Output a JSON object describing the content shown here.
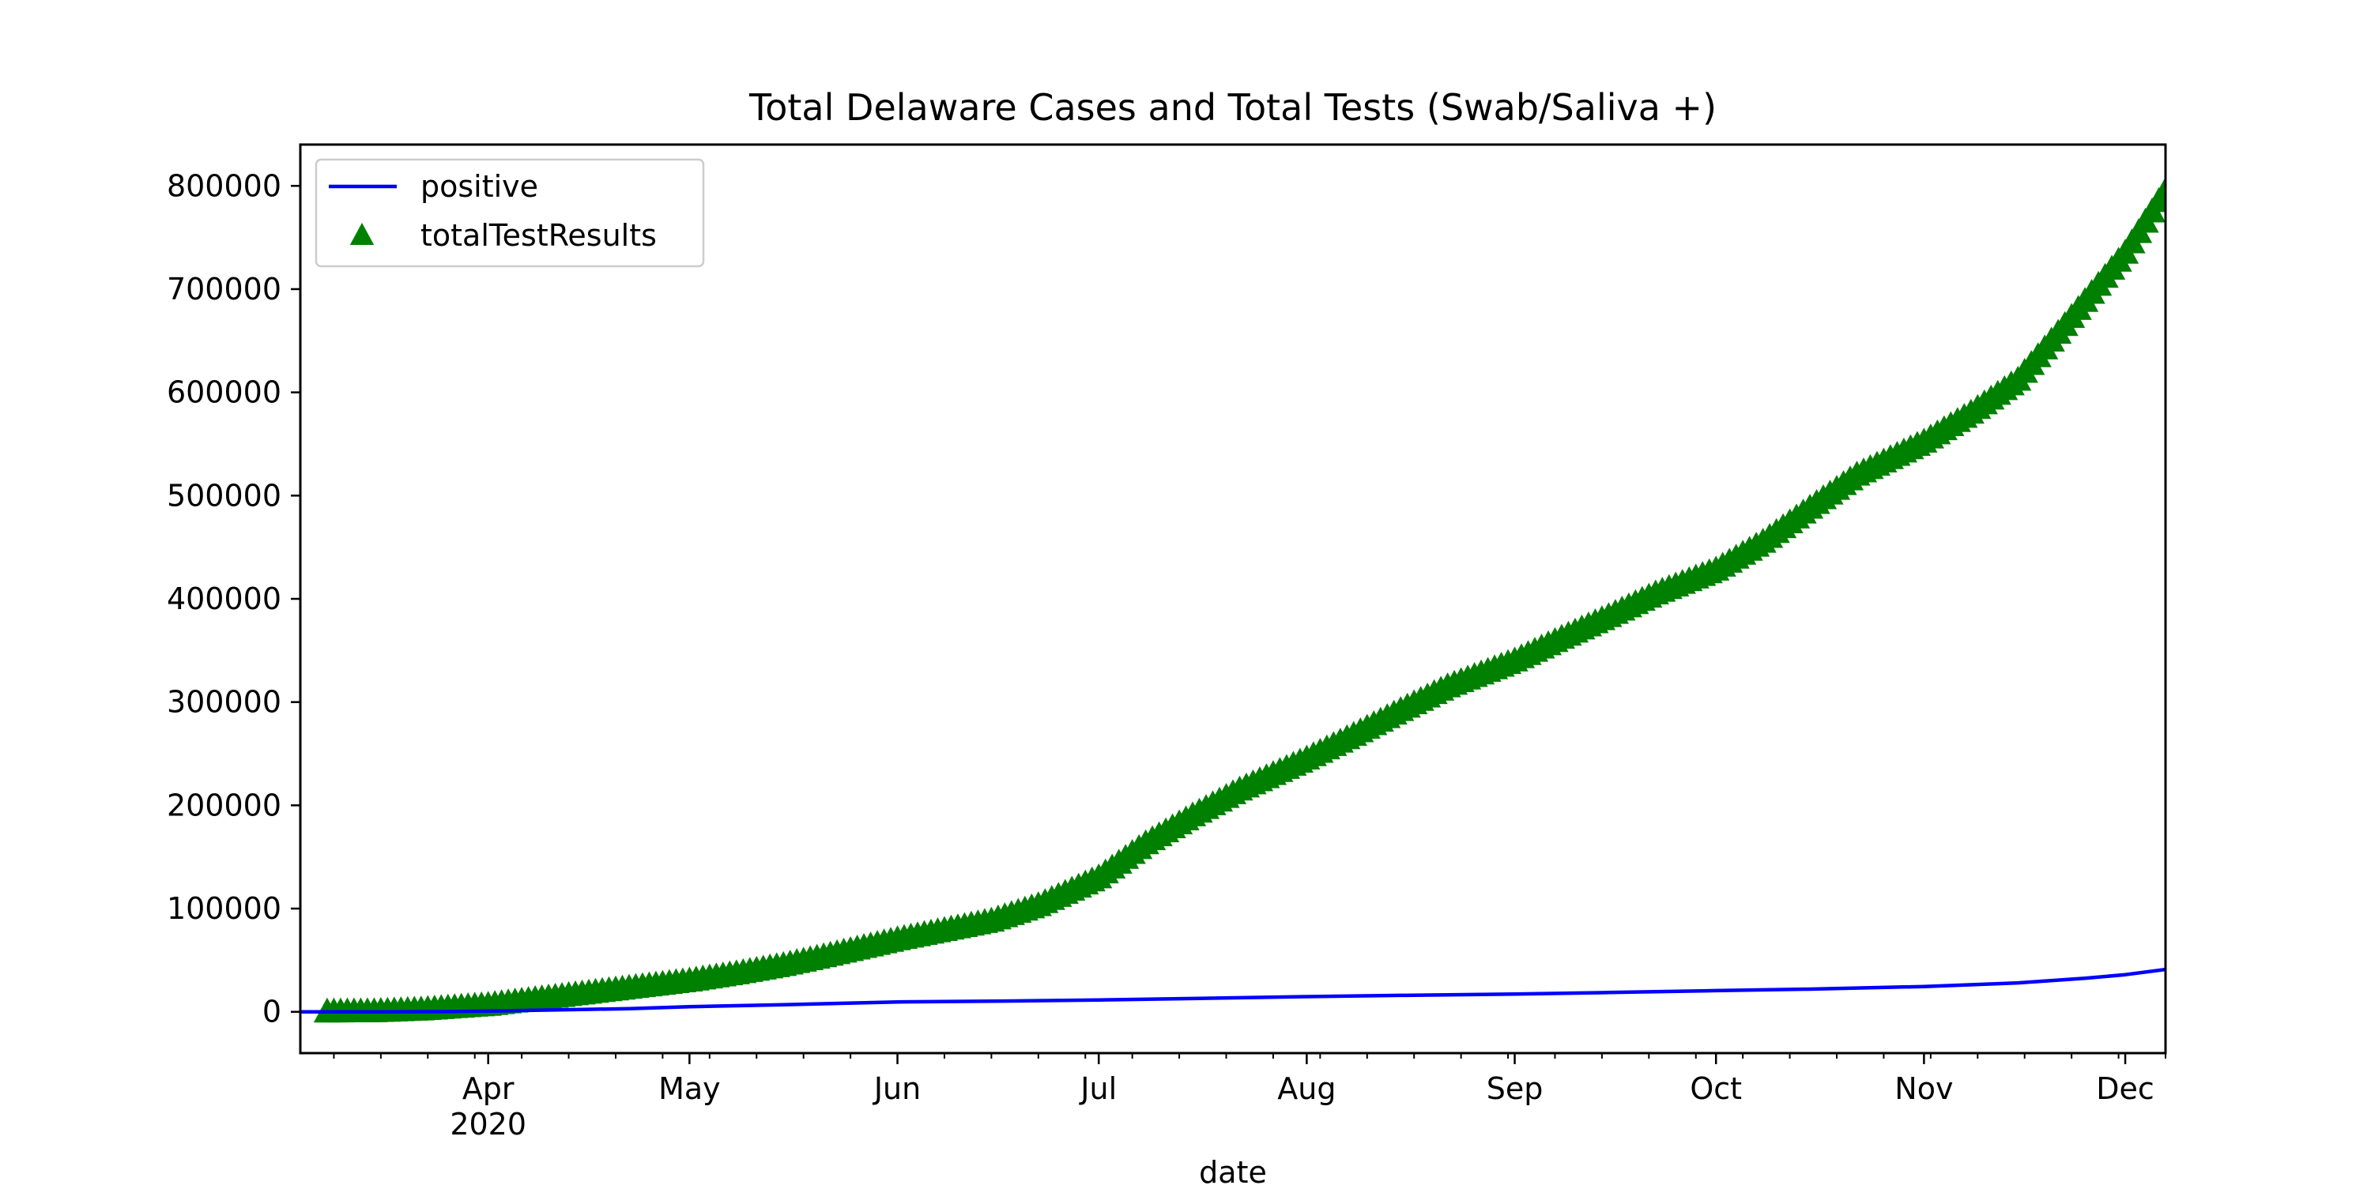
{
  "chart_data": {
    "type": "line",
    "title": "Total Delaware Cases and Total Tests (Swab/Saliva +)",
    "xlabel": "date",
    "ylabel": "",
    "x_range": [
      "2020-03-04",
      "2020-12-07"
    ],
    "ylim": [
      -40000,
      840000
    ],
    "y_ticks": [
      0,
      100000,
      200000,
      300000,
      400000,
      500000,
      600000,
      700000,
      800000
    ],
    "y_tick_labels": [
      "0",
      "100000",
      "200000",
      "300000",
      "400000",
      "500000",
      "600000",
      "700000",
      "800000"
    ],
    "x_ticks": [
      {
        "date": "2020-04-01",
        "label": "Apr",
        "sublabel": "2020"
      },
      {
        "date": "2020-05-01",
        "label": "May",
        "sublabel": ""
      },
      {
        "date": "2020-06-01",
        "label": "Jun",
        "sublabel": ""
      },
      {
        "date": "2020-07-01",
        "label": "Jul",
        "sublabel": ""
      },
      {
        "date": "2020-08-01",
        "label": "Aug",
        "sublabel": ""
      },
      {
        "date": "2020-09-01",
        "label": "Sep",
        "sublabel": ""
      },
      {
        "date": "2020-10-01",
        "label": "Oct",
        "sublabel": ""
      },
      {
        "date": "2020-11-01",
        "label": "Nov",
        "sublabel": ""
      },
      {
        "date": "2020-12-01",
        "label": "Dec",
        "sublabel": ""
      }
    ],
    "grid": false,
    "legend_position": "top-left",
    "series": [
      {
        "name": "positive",
        "style": "line",
        "color": "#0000ff",
        "points": [
          {
            "date": "2020-03-04",
            "value": 0
          },
          {
            "date": "2020-03-11",
            "value": 0
          },
          {
            "date": "2020-03-18",
            "value": 30
          },
          {
            "date": "2020-03-25",
            "value": 200
          },
          {
            "date": "2020-04-01",
            "value": 700
          },
          {
            "date": "2020-04-08",
            "value": 1500
          },
          {
            "date": "2020-04-15",
            "value": 2300
          },
          {
            "date": "2020-04-22",
            "value": 3000
          },
          {
            "date": "2020-05-01",
            "value": 4900
          },
          {
            "date": "2020-05-15",
            "value": 6900
          },
          {
            "date": "2020-06-01",
            "value": 9600
          },
          {
            "date": "2020-06-15",
            "value": 10300
          },
          {
            "date": "2020-07-01",
            "value": 11500
          },
          {
            "date": "2020-07-15",
            "value": 12900
          },
          {
            "date": "2020-08-01",
            "value": 14700
          },
          {
            "date": "2020-08-15",
            "value": 15900
          },
          {
            "date": "2020-09-01",
            "value": 17200
          },
          {
            "date": "2020-09-15",
            "value": 18700
          },
          {
            "date": "2020-10-01",
            "value": 20500
          },
          {
            "date": "2020-10-15",
            "value": 22000
          },
          {
            "date": "2020-11-01",
            "value": 24500
          },
          {
            "date": "2020-11-15",
            "value": 28000
          },
          {
            "date": "2020-11-25",
            "value": 32500
          },
          {
            "date": "2020-12-01",
            "value": 36000
          },
          {
            "date": "2020-12-07",
            "value": 41000
          }
        ]
      },
      {
        "name": "totalTestResults",
        "style": "markers",
        "marker": "triangle-up",
        "color": "#008000",
        "points": [
          {
            "date": "2020-03-08",
            "value": 0
          },
          {
            "date": "2020-03-15",
            "value": 300
          },
          {
            "date": "2020-03-22",
            "value": 2000
          },
          {
            "date": "2020-04-01",
            "value": 6500
          },
          {
            "date": "2020-04-08",
            "value": 12000
          },
          {
            "date": "2020-04-15",
            "value": 17500
          },
          {
            "date": "2020-04-22",
            "value": 23000
          },
          {
            "date": "2020-05-01",
            "value": 30000
          },
          {
            "date": "2020-05-08",
            "value": 37000
          },
          {
            "date": "2020-05-15",
            "value": 45000
          },
          {
            "date": "2020-05-22",
            "value": 55000
          },
          {
            "date": "2020-06-01",
            "value": 70000
          },
          {
            "date": "2020-06-08",
            "value": 79000
          },
          {
            "date": "2020-06-15",
            "value": 88000
          },
          {
            "date": "2020-06-22",
            "value": 103000
          },
          {
            "date": "2020-07-01",
            "value": 130000
          },
          {
            "date": "2020-07-08",
            "value": 163000
          },
          {
            "date": "2020-07-15",
            "value": 190000
          },
          {
            "date": "2020-07-22",
            "value": 215000
          },
          {
            "date": "2020-08-01",
            "value": 245000
          },
          {
            "date": "2020-08-08",
            "value": 268000
          },
          {
            "date": "2020-08-15",
            "value": 292000
          },
          {
            "date": "2020-08-22",
            "value": 315000
          },
          {
            "date": "2020-09-01",
            "value": 340000
          },
          {
            "date": "2020-09-08",
            "value": 362000
          },
          {
            "date": "2020-09-15",
            "value": 383000
          },
          {
            "date": "2020-09-22",
            "value": 405000
          },
          {
            "date": "2020-10-01",
            "value": 428000
          },
          {
            "date": "2020-10-08",
            "value": 455000
          },
          {
            "date": "2020-10-15",
            "value": 488000
          },
          {
            "date": "2020-10-22",
            "value": 520000
          },
          {
            "date": "2020-11-01",
            "value": 552000
          },
          {
            "date": "2020-11-08",
            "value": 580000
          },
          {
            "date": "2020-11-15",
            "value": 612000
          },
          {
            "date": "2020-11-22",
            "value": 665000
          },
          {
            "date": "2020-12-01",
            "value": 735000
          },
          {
            "date": "2020-12-07",
            "value": 795000
          }
        ]
      }
    ]
  }
}
